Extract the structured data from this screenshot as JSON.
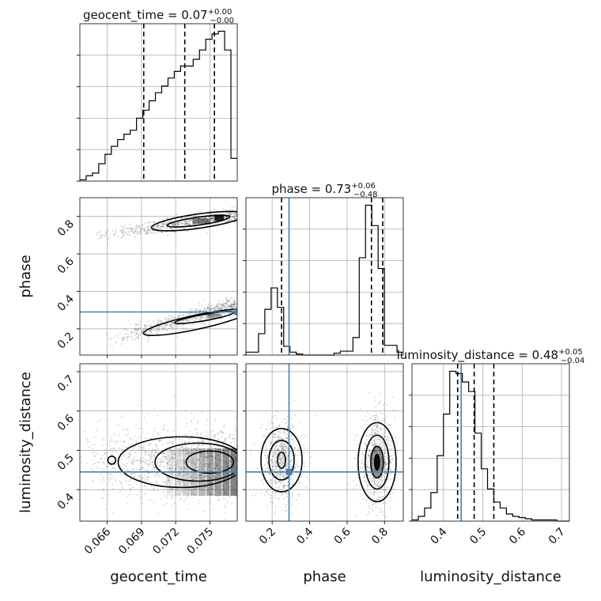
{
  "chart_data": {
    "type": "corner",
    "truth_color": "#4682b4",
    "hist_color": "#000000",
    "parameters": [
      {
        "key": "geocent_time",
        "label": "geocent_time",
        "range": [
          0.0636,
          0.0774
        ],
        "ticks": [
          0.066,
          0.069,
          0.072,
          0.075
        ],
        "tick_labels": [
          "0.066",
          "0.069",
          "0.072",
          "0.075"
        ],
        "title_name": "geocent_time",
        "title_value": "0.07",
        "title_plus": "+0.00",
        "title_minus": "−0.00",
        "quantiles": [
          0.0692,
          0.0728,
          0.0754
        ],
        "truth": null
      },
      {
        "key": "phase",
        "label": "phase",
        "range": [
          0.06,
          0.9
        ],
        "ticks": [
          0.2,
          0.4,
          0.6,
          0.8
        ],
        "tick_labels": [
          "0.2",
          "0.4",
          "0.6",
          "0.8"
        ],
        "title_name": "phase",
        "title_value": "0.73",
        "title_plus": "+0.06",
        "title_minus": "−0.48",
        "quantiles": [
          0.25,
          0.73,
          0.79
        ],
        "truth": 0.29
      },
      {
        "key": "luminosity_distance",
        "label": "luminosity_distance",
        "range": [
          0.32,
          0.72
        ],
        "ticks": [
          0.4,
          0.5,
          0.6,
          0.7
        ],
        "tick_labels": [
          "0.4",
          "0.5",
          "0.6",
          "0.7"
        ],
        "title_name": "luminosity_distance",
        "title_value": "0.48",
        "title_plus": "+0.05",
        "title_minus": "−0.04",
        "quantiles": [
          0.436,
          0.478,
          0.528
        ],
        "truth": 0.445
      }
    ],
    "histograms": {
      "geocent_time": {
        "edges_start": 0.0636,
        "bin_width": 0.000552,
        "counts": [
          1,
          4,
          6,
          13,
          20,
          26,
          31,
          35,
          38,
          47,
          53,
          60,
          66,
          71,
          77,
          82,
          86,
          86,
          91,
          98,
          106,
          110,
          112,
          98,
          17
        ]
      },
      "phase": {
        "edges_start": 0.06,
        "bin_width": 0.0336,
        "counts": [
          3,
          3,
          22,
          47,
          69,
          49,
          9,
          3,
          1,
          0,
          0,
          0,
          0,
          0,
          2,
          4,
          4,
          18,
          100,
          154,
          133,
          89,
          10,
          10,
          3
        ]
      },
      "luminosity_distance": {
        "edges_start": 0.32,
        "bin_width": 0.016,
        "counts": [
          1,
          4,
          11,
          24,
          55,
          90,
          126,
          124,
          117,
          109,
          74,
          44,
          27,
          16,
          11,
          6,
          4,
          3,
          2,
          1,
          1,
          1,
          1,
          0,
          0
        ]
      }
    },
    "pairs": {
      "phase_vs_geocent_time": {
        "modes": [
          {
            "x_range": [
              0.0645,
              0.0774
            ],
            "y_start": 0.69,
            "y_end": 0.81,
            "y_sd": 0.018
          },
          {
            "x_range": [
              0.0656,
              0.0774
            ],
            "y_start": 0.13,
            "y_end": 0.33,
            "y_sd": 0.022
          }
        ]
      },
      "luminosity_distance_vs_geocent_time": {
        "center": [
          0.074,
          0.47
        ],
        "spread": [
          0.006,
          0.045
        ]
      },
      "luminosity_distance_vs_phase": {
        "modes": [
          {
            "center": [
              0.25,
              0.475
            ],
            "spread": [
              0.04,
              0.04
            ]
          },
          {
            "center": [
              0.76,
              0.47
            ],
            "spread": [
              0.035,
              0.045
            ]
          }
        ]
      }
    }
  }
}
